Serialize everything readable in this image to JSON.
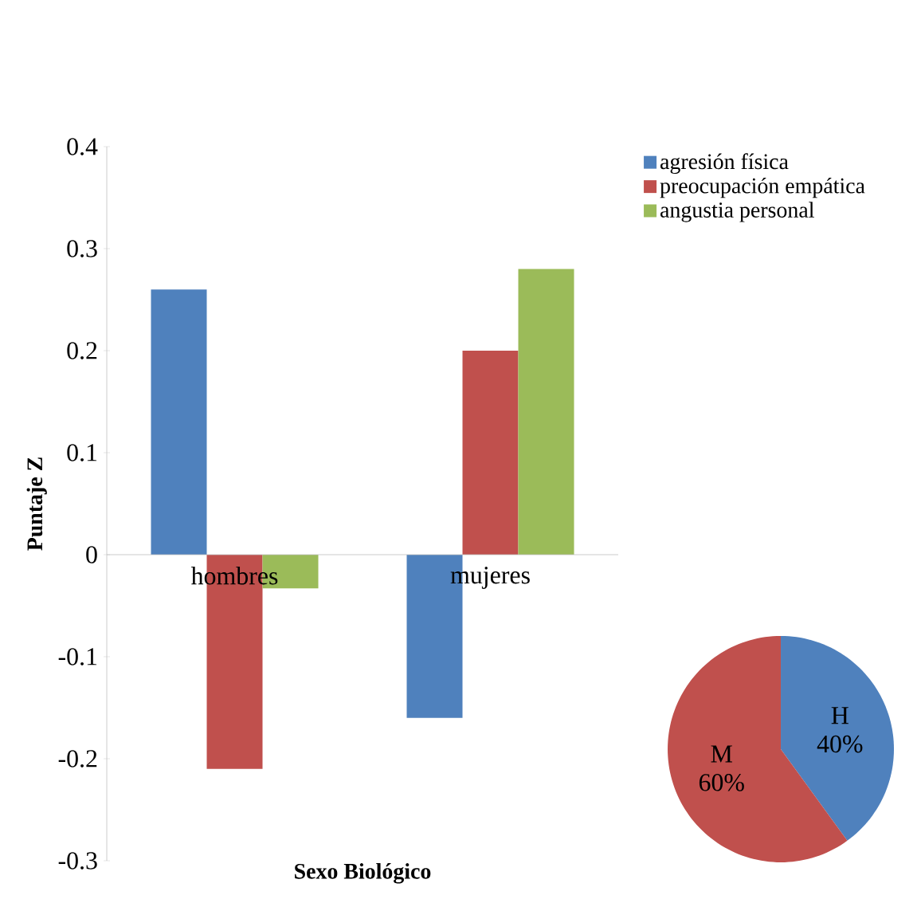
{
  "chart_data": [
    {
      "type": "bar",
      "xlabel": "Sexo Biológico",
      "ylabel": "Puntaje Z",
      "categories": [
        "hombres",
        "mujeres"
      ],
      "series": [
        {
          "name": "agresión física",
          "color": "#4f81bd",
          "values": [
            0.26,
            -0.16
          ]
        },
        {
          "name": "preocupación empática",
          "color": "#c0504d",
          "values": [
            -0.21,
            0.2
          ]
        },
        {
          "name": "angustia personal",
          "color": "#9bbb59",
          "values": [
            -0.033,
            0.28
          ]
        }
      ],
      "ylim": [
        -0.3,
        0.4
      ],
      "yticks": [
        -0.3,
        -0.2,
        -0.1,
        0,
        0.1,
        0.2,
        0.3,
        0.4
      ],
      "legend": "top right"
    },
    {
      "type": "pie",
      "categories": [
        "H",
        "M"
      ],
      "values": [
        40,
        60
      ],
      "colors": [
        "#4f81bd",
        "#c0504d"
      ],
      "value_labels": [
        "40%",
        "60%"
      ]
    }
  ]
}
